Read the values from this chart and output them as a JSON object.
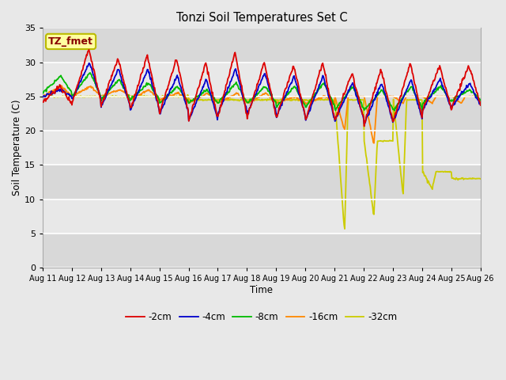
{
  "title": "Tonzi Soil Temperatures Set C",
  "xlabel": "Time",
  "ylabel": "Soil Temperature (C)",
  "ylim": [
    0,
    35
  ],
  "yticks": [
    0,
    5,
    10,
    15,
    20,
    25,
    30,
    35
  ],
  "legend_label": "TZ_fmet",
  "series_labels": [
    "-2cm",
    "-4cm",
    "-8cm",
    "-16cm",
    "-32cm"
  ],
  "series_colors": [
    "#dd0000",
    "#0000cc",
    "#00bb00",
    "#ff8800",
    "#cccc00"
  ],
  "background_color": "#e8e8e8",
  "xtick_labels": [
    "Aug 11",
    "Aug 12",
    "Aug 13",
    "Aug 14",
    "Aug 15",
    "Aug 16",
    "Aug 17",
    "Aug 18",
    "Aug 19",
    "Aug 20",
    "Aug 21",
    "Aug 22",
    "Aug 23",
    "Aug 24",
    "Aug 25",
    "Aug 26"
  ],
  "xtick_positions": [
    0,
    1,
    2,
    3,
    4,
    5,
    6,
    7,
    8,
    9,
    10,
    11,
    12,
    13,
    14,
    15
  ],
  "t2_peaks": [
    26.5,
    32.0,
    30.5,
    31.0,
    30.5,
    30.0,
    31.5,
    30.0,
    29.5,
    30.0,
    28.5,
    29.0,
    30.0,
    29.5,
    29.5
  ],
  "t2_mins": [
    24.0,
    24.0,
    23.5,
    23.0,
    22.5,
    21.5,
    22.0,
    22.0,
    22.0,
    21.5,
    21.5,
    21.0,
    21.5,
    23.0,
    23.5
  ],
  "t4_peaks": [
    26.0,
    30.0,
    29.0,
    29.0,
    28.0,
    27.5,
    29.0,
    28.5,
    28.0,
    28.0,
    27.0,
    27.0,
    27.5,
    27.5,
    27.0
  ],
  "t4_mins": [
    25.0,
    24.5,
    23.5,
    23.0,
    22.5,
    21.5,
    22.5,
    22.5,
    22.0,
    21.5,
    21.5,
    21.0,
    21.5,
    23.0,
    23.5
  ],
  "t8_peaks": [
    28.0,
    28.5,
    27.5,
    27.0,
    26.5,
    26.0,
    27.0,
    26.5,
    26.5,
    27.0,
    26.5,
    26.0,
    26.5,
    26.5,
    26.0
  ],
  "t8_mins": [
    25.5,
    25.0,
    24.5,
    24.5,
    24.0,
    24.0,
    24.0,
    24.0,
    23.5,
    23.5,
    23.0,
    23.0,
    23.0,
    24.0,
    24.5
  ],
  "t16_peaks": [
    26.5,
    26.5,
    26.0,
    26.0,
    25.5,
    25.5,
    25.5,
    25.5,
    25.0,
    25.0,
    25.0,
    25.0,
    25.0,
    25.0,
    25.0
  ],
  "t16_mins": [
    25.0,
    25.0,
    25.0,
    24.5,
    24.5,
    24.0,
    24.0,
    24.0,
    24.0,
    24.0,
    20.0,
    18.0,
    24.0,
    24.0,
    24.0
  ],
  "t32_peaks": [
    25.0,
    25.0,
    25.0,
    25.0,
    25.0,
    24.5,
    24.5,
    24.5,
    24.5,
    24.5,
    24.5,
    18.5,
    24.5,
    14.0,
    13.0
  ],
  "t32_mins": [
    25.0,
    25.0,
    25.0,
    25.0,
    25.0,
    24.5,
    24.5,
    24.5,
    24.5,
    24.5,
    5.0,
    7.5,
    10.5,
    11.5,
    13.0
  ]
}
